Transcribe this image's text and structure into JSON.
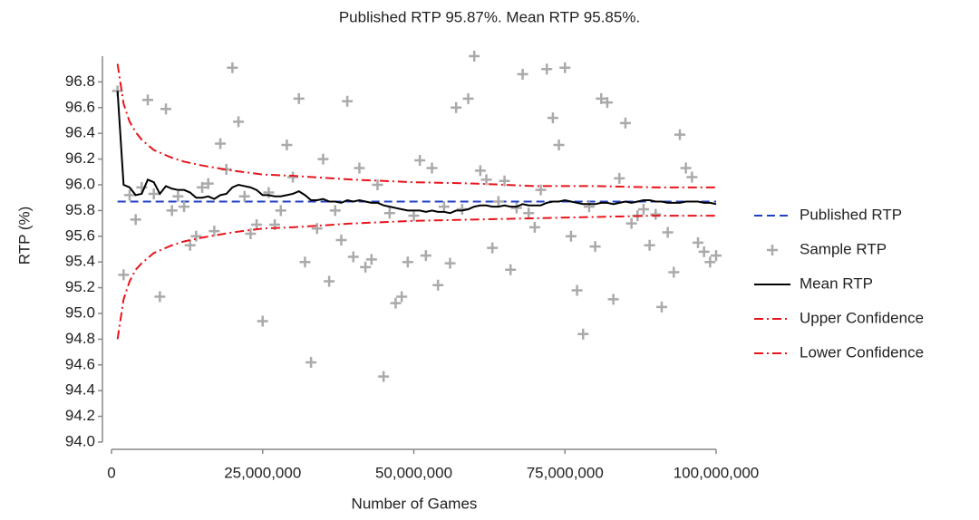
{
  "chart_data": {
    "type": "line",
    "title": "Published RTP 95.87%. Mean RTP 95.85%.",
    "x_label": "Number of Games",
    "y_label": "RTP (%)",
    "xlim": [
      0,
      100000000
    ],
    "ylim": [
      94.0,
      97.0
    ],
    "xticks": [
      0,
      {
        "value": 25000000,
        "label": "25,000,000"
      },
      {
        "value": 50000000,
        "label": "50,000,000"
      },
      {
        "value": 75000000,
        "label": "75,000,000"
      },
      {
        "value": 100000000,
        "label": "100,000,000"
      }
    ],
    "yticks": [
      {
        "value": 94,
        "label": "94.0"
      },
      94.2,
      94.4,
      94.6,
      94.8,
      {
        "value": 95,
        "label": "95.0"
      },
      95.2,
      95.4,
      95.6,
      95.8,
      {
        "value": 96,
        "label": "96.0"
      },
      96.2,
      96.4,
      96.6,
      96.8
    ],
    "grid": false,
    "legend": "right",
    "x": [
      1000000,
      2000000,
      3000000,
      4000000,
      5000000,
      6000000,
      7000000,
      8000000,
      9000000,
      10000000,
      11000000,
      12000000,
      13000000,
      14000000,
      15000000,
      16000000,
      17000000,
      18000000,
      19000000,
      20000000,
      21000000,
      22000000,
      23000000,
      24000000,
      25000000,
      26000000,
      27000000,
      28000000,
      29000000,
      30000000,
      31000000,
      32000000,
      33000000,
      34000000,
      35000000,
      36000000,
      37000000,
      38000000,
      39000000,
      40000000,
      41000000,
      42000000,
      43000000,
      44000000,
      45000000,
      46000000,
      47000000,
      48000000,
      49000000,
      50000000,
      51000000,
      52000000,
      53000000,
      54000000,
      55000000,
      56000000,
      57000000,
      58000000,
      59000000,
      60000000,
      61000000,
      62000000,
      63000000,
      64000000,
      65000000,
      66000000,
      67000000,
      68000000,
      69000000,
      70000000,
      71000000,
      72000000,
      73000000,
      74000000,
      75000000,
      76000000,
      77000000,
      78000000,
      79000000,
      80000000,
      81000000,
      82000000,
      83000000,
      84000000,
      85000000,
      86000000,
      87000000,
      88000000,
      89000000,
      90000000,
      91000000,
      92000000,
      93000000,
      94000000,
      95000000,
      96000000,
      97000000,
      98000000,
      99000000,
      100000000
    ],
    "series": [
      {
        "name": "Published RTP",
        "color": "#1f3fc4",
        "style": "dashed",
        "marker": "none",
        "x": [
          1000000,
          100000000
        ],
        "values": [
          95.87,
          95.87
        ]
      },
      {
        "name": "Sample RTP",
        "color": "#aaaaaa",
        "style": "none",
        "marker": "plus",
        "values": [
          96.73,
          95.3,
          95.92,
          95.73,
          95.98,
          96.66,
          95.93,
          95.13,
          96.59,
          95.8,
          95.91,
          95.83,
          95.53,
          95.6,
          95.98,
          96.01,
          95.64,
          96.32,
          96.12,
          96.91,
          96.49,
          95.91,
          95.62,
          95.69,
          94.94,
          95.94,
          95.69,
          95.8,
          96.31,
          96.06,
          96.67,
          95.4,
          94.62,
          95.66,
          96.2,
          95.25,
          95.8,
          95.57,
          96.65,
          95.44,
          96.13,
          95.36,
          95.42,
          96.0,
          94.51,
          95.78,
          95.08,
          95.13,
          95.4,
          95.76,
          96.19,
          95.45,
          96.13,
          95.22,
          95.83,
          95.39,
          96.6,
          95.81,
          96.67,
          97.0,
          96.11,
          96.04,
          95.51,
          95.87,
          96.03,
          95.34,
          95.82,
          96.86,
          95.78,
          95.67,
          95.96,
          96.9,
          96.52,
          96.31,
          96.91,
          95.6,
          95.18,
          94.84,
          95.83,
          95.52,
          96.67,
          96.64,
          95.11,
          96.05,
          96.48,
          95.7,
          95.76,
          95.81,
          95.53,
          95.77,
          95.05,
          95.63,
          95.32,
          96.39,
          96.13,
          96.06,
          95.55,
          95.48,
          95.4,
          95.45
        ]
      },
      {
        "name": "Mean RTP",
        "color": "#000000",
        "style": "solid",
        "marker": "none",
        "values": [
          96.73,
          96.0,
          95.98,
          95.92,
          95.93,
          96.04,
          96.02,
          95.93,
          95.99,
          95.97,
          95.96,
          95.96,
          95.94,
          95.9,
          95.9,
          95.91,
          95.89,
          95.92,
          95.93,
          95.98,
          96.0,
          95.99,
          95.98,
          95.96,
          95.92,
          95.92,
          95.91,
          95.91,
          95.92,
          95.93,
          95.95,
          95.92,
          95.88,
          95.88,
          95.89,
          95.87,
          95.87,
          95.86,
          95.88,
          95.87,
          95.88,
          95.87,
          95.86,
          95.86,
          95.84,
          95.83,
          95.82,
          95.81,
          95.8,
          95.8,
          95.8,
          95.79,
          95.8,
          95.79,
          95.79,
          95.78,
          95.8,
          95.8,
          95.81,
          95.83,
          95.84,
          95.84,
          95.83,
          95.83,
          95.84,
          95.83,
          95.83,
          95.85,
          95.84,
          95.84,
          95.84,
          95.86,
          95.87,
          95.87,
          95.88,
          95.87,
          95.86,
          95.85,
          95.85,
          95.85,
          95.86,
          95.86,
          95.85,
          95.86,
          95.87,
          95.86,
          95.87,
          95.88,
          95.88,
          95.87,
          95.87,
          95.86,
          95.86,
          95.86,
          95.87,
          95.87,
          95.87,
          95.86,
          95.86,
          95.85
        ]
      },
      {
        "name": "Upper Confidence",
        "color": "#e8141b",
        "style": "dashdot",
        "marker": "none",
        "x": [
          1000000,
          2000000,
          3000000,
          4000000,
          5000000,
          6000000,
          7000000,
          8000000,
          10000000,
          12000000,
          15000000,
          20000000,
          25000000,
          30000000,
          40000000,
          50000000,
          60000000,
          70000000,
          80000000,
          90000000,
          100000000
        ],
        "values": [
          96.94,
          96.63,
          96.49,
          96.41,
          96.35,
          96.31,
          96.27,
          96.25,
          96.21,
          96.18,
          96.15,
          96.11,
          96.08,
          96.07,
          96.04,
          96.02,
          96.01,
          95.99,
          95.99,
          95.98,
          95.98
        ]
      },
      {
        "name": "Lower Confidence",
        "color": "#e8141b",
        "style": "dashdot",
        "marker": "none",
        "x": [
          1000000,
          2000000,
          3000000,
          4000000,
          5000000,
          6000000,
          7000000,
          8000000,
          10000000,
          12000000,
          15000000,
          20000000,
          25000000,
          30000000,
          40000000,
          50000000,
          60000000,
          70000000,
          80000000,
          90000000,
          100000000
        ],
        "values": [
          94.8,
          95.11,
          95.25,
          95.34,
          95.39,
          95.43,
          95.47,
          95.49,
          95.53,
          95.56,
          95.59,
          95.63,
          95.66,
          95.67,
          95.7,
          95.72,
          95.73,
          95.74,
          95.75,
          95.76,
          95.76
        ]
      }
    ]
  }
}
